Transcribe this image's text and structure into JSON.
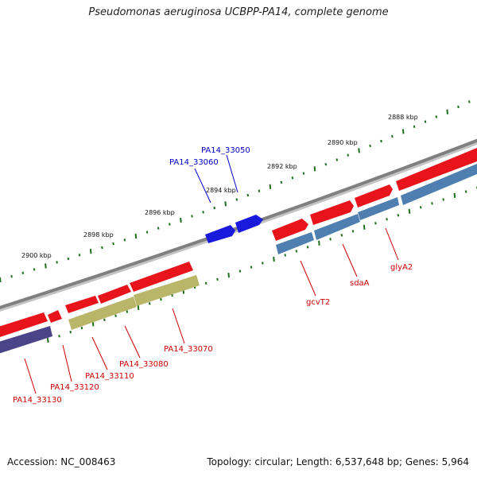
{
  "title": "Pseudomonas aeruginosa UCBPP-PA14, complete genome",
  "footer": {
    "accession": "Accession: NC_008463",
    "topology": "Topology: circular; Length: 6,537,648 bp; Genes: 5,964"
  },
  "colors": {
    "backbone": "#808080",
    "tick": "#1e6e1e",
    "gene_red": "#e8141c",
    "gene_blue": "#1a1adc",
    "gene_steel": "#4f7fb0",
    "gene_olive": "#b9b66a",
    "gene_purple": "#4c4488",
    "label_red": "#cc0000",
    "label_blue": "#0000cc"
  },
  "ruler_labels": [
    "2888 kbp",
    "2890 kbp",
    "2892 kbp",
    "2894 kbp",
    "2896 kbp",
    "2898 kbp",
    "2900 kbp"
  ],
  "gene_labels": [
    {
      "id": "PA14_33050",
      "color": "blue"
    },
    {
      "id": "PA14_33060",
      "color": "blue"
    },
    {
      "id": "PA14_33070",
      "color": "red"
    },
    {
      "id": "PA14_33080",
      "color": "red"
    },
    {
      "id": "PA14_33110",
      "color": "red"
    },
    {
      "id": "PA14_33120",
      "color": "red"
    },
    {
      "id": "PA14_33130",
      "color": "red"
    },
    {
      "id": "gcvT2",
      "color": "red"
    },
    {
      "id": "sdaA",
      "color": "red"
    },
    {
      "id": "glyA2",
      "color": "red"
    }
  ]
}
